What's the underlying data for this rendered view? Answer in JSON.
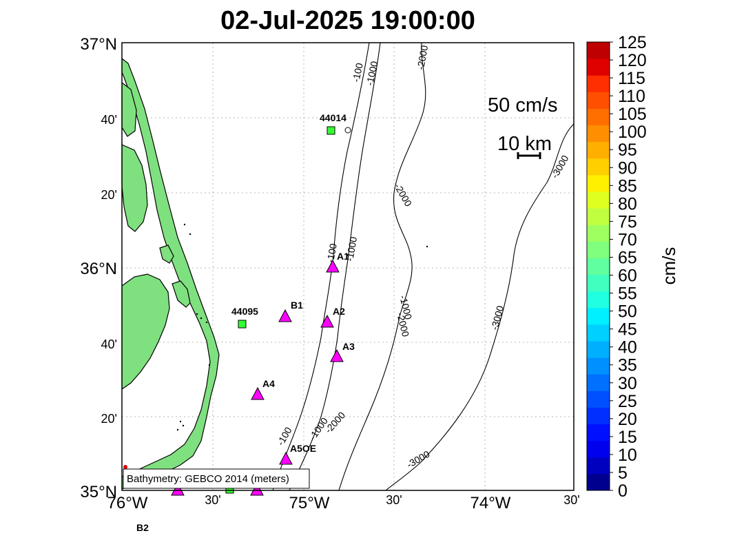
{
  "title": "02-Jul-2025 19:00:00",
  "lat_labels": [
    {
      "text": "37°N",
      "size": "big"
    },
    {
      "text": "40'",
      "size": "small"
    },
    {
      "text": "20'",
      "size": "small"
    },
    {
      "text": "36°N",
      "size": "big"
    },
    {
      "text": "40'",
      "size": "small"
    },
    {
      "text": "20'",
      "size": "small"
    },
    {
      "text": "35°N",
      "size": "big"
    }
  ],
  "lon_labels": [
    {
      "text": "76°W",
      "size": "big"
    },
    {
      "text": "30'",
      "size": "small"
    },
    {
      "text": "75°W",
      "size": "big"
    },
    {
      "text": "30'",
      "size": "small"
    },
    {
      "text": "74°W",
      "size": "big"
    },
    {
      "text": "30'",
      "size": "small"
    }
  ],
  "scale": {
    "speed_label": "50 cm/s",
    "distance_label": "10 km"
  },
  "attribution": "Bathymetry: GEBCO 2014 (meters)",
  "colorbar": {
    "label": "cm/s",
    "ticks": [
      "125",
      "120",
      "115",
      "110",
      "105",
      "100",
      "95",
      "90",
      "85",
      "80",
      "75",
      "70",
      "65",
      "60",
      "55",
      "50",
      "45",
      "40",
      "35",
      "30",
      "25",
      "20",
      "15",
      "10",
      "5",
      "0"
    ],
    "colors": [
      "#00008f",
      "#0000bf",
      "#0000ef",
      "#0010ff",
      "#0030ff",
      "#0050ff",
      "#0070ff",
      "#0090ff",
      "#00b0ff",
      "#00d0ff",
      "#00f0ff",
      "#20ffdf",
      "#40ffbf",
      "#60ff9f",
      "#80ff7f",
      "#9fff60",
      "#bfff40",
      "#dfff20",
      "#ffef00",
      "#ffcf00",
      "#ffaf00",
      "#ff8f00",
      "#ff6f00",
      "#ff4f00",
      "#ff2f00",
      "#df0000",
      "#bf0000"
    ]
  },
  "contour_labels": [
    "-100",
    "-1000",
    "-2000",
    "-100",
    "-1000",
    "-1000",
    "-2000",
    "-2000",
    "-3000",
    "-3000",
    "-100",
    "-1000",
    "-2000",
    "-3000"
  ],
  "stations": [
    {
      "name": "A1",
      "kind": "triangle"
    },
    {
      "name": "B1",
      "kind": "triangle"
    },
    {
      "name": "A2",
      "kind": "triangle"
    },
    {
      "name": "A3",
      "kind": "triangle"
    },
    {
      "name": "A4",
      "kind": "triangle"
    },
    {
      "name": "A5OE",
      "kind": "triangle"
    },
    {
      "name": "44014",
      "kind": "square"
    },
    {
      "name": "44095",
      "kind": "square"
    },
    {
      "name": "B2",
      "kind": "triangle"
    }
  ],
  "colors": {
    "land": "#7fe07f",
    "station_triangle": "#ff00ff",
    "station_square": "#33ff33"
  }
}
